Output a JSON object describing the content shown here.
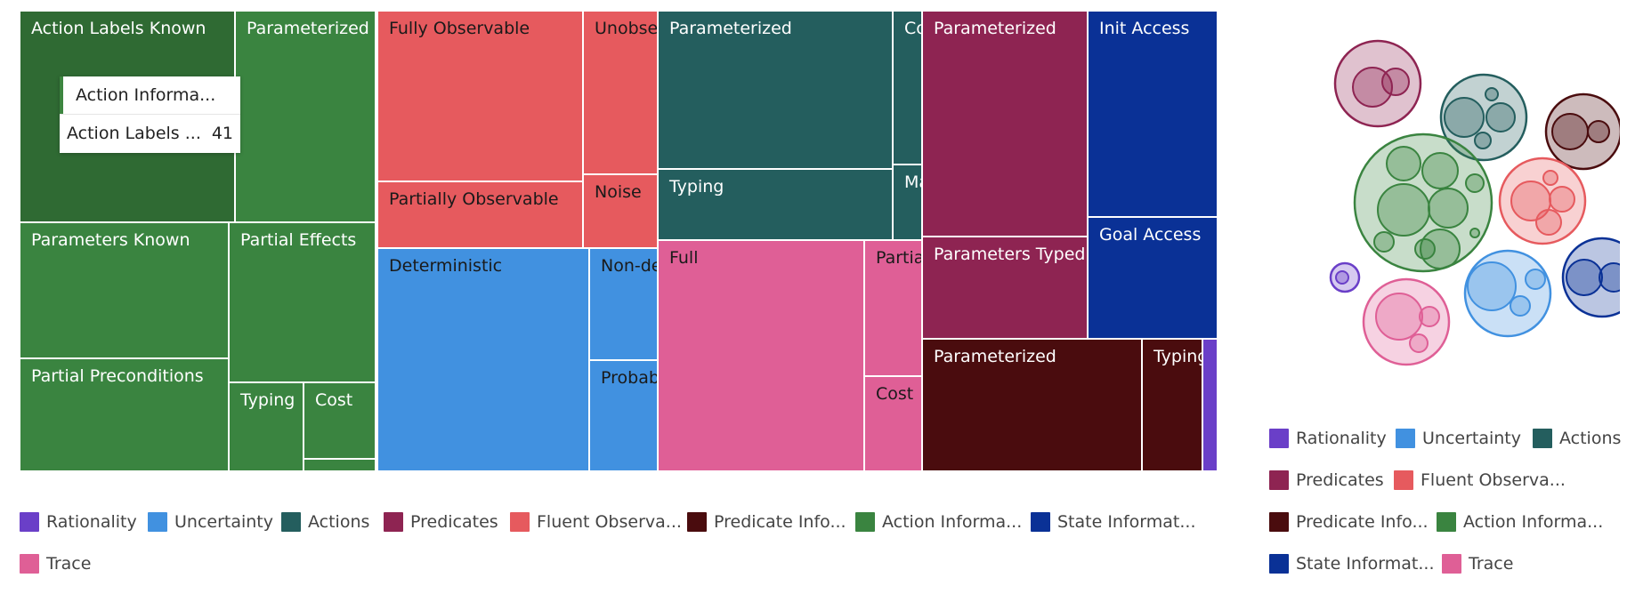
{
  "colors": {
    "Rationality": "#6a3fc8",
    "Uncertainty": "#4191e0",
    "Actions": "#245e5e",
    "Predicates": "#8e2452",
    "Fluent Observability": "#e65a5e",
    "Predicate Information": "#4a0c0e",
    "Action Information": "#3a8440",
    "State Information": "#0a3196",
    "Trace": "#df5f96"
  },
  "treemap_legend": [
    {
      "key": "Rationality",
      "label": "Rationality"
    },
    {
      "key": "Uncertainty",
      "label": "Uncertainty"
    },
    {
      "key": "Actions",
      "label": "Actions"
    },
    {
      "key": "Predicates",
      "label": "Predicates"
    },
    {
      "key": "Fluent Observability",
      "label": "Fluent Observa..."
    },
    {
      "key": "Predicate Information",
      "label": "Predicate Info..."
    },
    {
      "key": "Action Information",
      "label": "Action Informa..."
    },
    {
      "key": "State Information",
      "label": "State Informat..."
    },
    {
      "key": "Trace",
      "label": "Trace"
    }
  ],
  "bubble_legend": [
    {
      "key": "Rationality",
      "label": "Rationality"
    },
    {
      "key": "Uncertainty",
      "label": "Uncertainty"
    },
    {
      "key": "Actions",
      "label": "Actions"
    },
    {
      "key": "Predicates",
      "label": "Predicates"
    },
    {
      "key": "Fluent Observability",
      "label": "Fluent Observa..."
    },
    {
      "key": "Predicate Information",
      "label": "Predicate Info..."
    },
    {
      "key": "Action Information",
      "label": "Action Informa..."
    },
    {
      "key": "State Information",
      "label": "State Informat..."
    },
    {
      "key": "Trace",
      "label": "Trace"
    }
  ],
  "tooltip": {
    "group": "Action Informa...",
    "item": "Action Labels ...",
    "value": "41"
  },
  "chart_data": [
    {
      "type": "treemap",
      "groups": [
        {
          "name": "Action Information",
          "children": [
            {
              "name": "Action Labels Known",
              "value": 41,
              "highlighted": true
            },
            {
              "name": "Parameterized",
              "value": 27
            },
            {
              "name": "Parameters Known",
              "value": 25
            },
            {
              "name": "Partial Effects",
              "value": 23
            },
            {
              "name": "Partial Preconditions",
              "value": 21
            },
            {
              "name": "Typing",
              "value": 7
            },
            {
              "name": "Cost",
              "value": 5
            },
            {
              "name": "",
              "value": 1
            }
          ]
        },
        {
          "name": "Fluent Observability",
          "children": [
            {
              "name": "Fully Observable",
              "value": 23
            },
            {
              "name": "Unobservable",
              "value": 10
            },
            {
              "name": "Partially Observable",
              "value": 11
            },
            {
              "name": "Noise",
              "value": 4
            }
          ]
        },
        {
          "name": "Uncertainty",
          "children": [
            {
              "name": "Deterministic",
              "value": 31
            },
            {
              "name": "Non-deterministic",
              "value": 6
            },
            {
              "name": "Probabilistic",
              "value": 5
            }
          ]
        },
        {
          "name": "Actions",
          "children": [
            {
              "name": "Parameterized",
              "value": 25
            },
            {
              "name": "Conditional",
              "value": 3
            },
            {
              "name": "Typing",
              "value": 11
            },
            {
              "name": "Macro",
              "value": 2
            }
          ]
        },
        {
          "name": "Trace",
          "children": [
            {
              "name": "Full",
              "value": 31
            },
            {
              "name": "Partial",
              "value": 6
            },
            {
              "name": "Cost",
              "value": 3
            }
          ]
        },
        {
          "name": "Predicates",
          "children": [
            {
              "name": "Parameterized",
              "value": 27
            },
            {
              "name": "Parameters Typed",
              "value": 12
            }
          ]
        },
        {
          "name": "State Information",
          "children": [
            {
              "name": "Init Access",
              "value": 22
            },
            {
              "name": "Goal Access",
              "value": 13
            }
          ]
        },
        {
          "name": "Predicate Information",
          "children": [
            {
              "name": "Parameterized",
              "value": 24
            },
            {
              "name": "Typing",
              "value": 6
            },
            {
              "name": "",
              "value": 1
            }
          ]
        },
        {
          "name": "Rationality",
          "children": [
            {
              "name": "",
              "value": 2
            }
          ]
        }
      ]
    },
    {
      "type": "packed-bubble",
      "groups": [
        "Predicates",
        "Actions",
        "Predicate Information",
        "Action Information",
        "Fluent Observability",
        "Rationality",
        "Uncertainty",
        "State Information",
        "Trace"
      ]
    }
  ]
}
